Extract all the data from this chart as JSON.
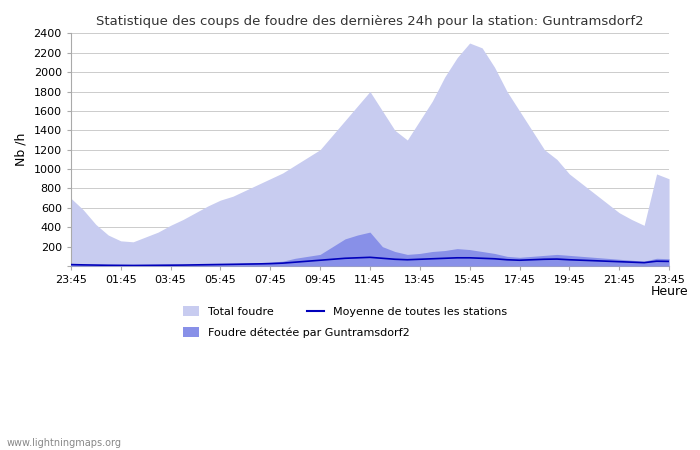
{
  "title": "Statistique des coups de foudre des dernières 24h pour la station: Guntramsdorf2",
  "ylabel": "Nb /h",
  "xlabel": "Heure",
  "watermark": "www.lightningmaps.org",
  "ylim": [
    0,
    2400
  ],
  "yticks": [
    0,
    200,
    400,
    600,
    800,
    1000,
    1200,
    1400,
    1600,
    1800,
    2000,
    2200,
    2400
  ],
  "xtick_labels": [
    "23:45",
    "01:45",
    "03:45",
    "05:45",
    "07:45",
    "09:45",
    "11:45",
    "13:45",
    "15:45",
    "17:45",
    "19:45",
    "21:45",
    "23:45"
  ],
  "color_total": "#c8ccf0",
  "color_local": "#8890e8",
  "color_mean": "#0000bb",
  "background_color": "#ffffff",
  "grid_color": "#cccccc",
  "legend_labels": [
    "Total foudre",
    "Moyenne de toutes les stations",
    "Foudre détectée par Guntramsdorf2"
  ],
  "total_foudre": [
    700,
    580,
    430,
    320,
    260,
    250,
    300,
    350,
    420,
    480,
    550,
    620,
    680,
    720,
    780,
    840,
    900,
    960,
    1040,
    1120,
    1200,
    1350,
    1500,
    1650,
    1800,
    1600,
    1400,
    1300,
    1500,
    1700,
    1950,
    2150,
    2300,
    2250,
    2050,
    1800,
    1600,
    1400,
    1200,
    1100,
    950,
    850,
    750,
    650,
    550,
    480,
    420,
    950,
    900
  ],
  "local_foudre": [
    20,
    15,
    10,
    8,
    7,
    6,
    7,
    8,
    10,
    12,
    15,
    18,
    22,
    25,
    30,
    35,
    40,
    50,
    80,
    100,
    120,
    200,
    280,
    320,
    350,
    200,
    150,
    120,
    130,
    150,
    160,
    180,
    170,
    150,
    130,
    100,
    90,
    100,
    110,
    120,
    110,
    100,
    90,
    80,
    70,
    60,
    50,
    80,
    75
  ],
  "mean_foudre": [
    15,
    12,
    10,
    8,
    7,
    6,
    7,
    8,
    9,
    10,
    12,
    14,
    16,
    18,
    20,
    22,
    25,
    30,
    40,
    50,
    60,
    70,
    80,
    85,
    90,
    80,
    70,
    65,
    70,
    75,
    80,
    85,
    85,
    80,
    75,
    65,
    60,
    65,
    70,
    72,
    65,
    60,
    55,
    50,
    45,
    40,
    35,
    50,
    48
  ],
  "n_points": 49
}
